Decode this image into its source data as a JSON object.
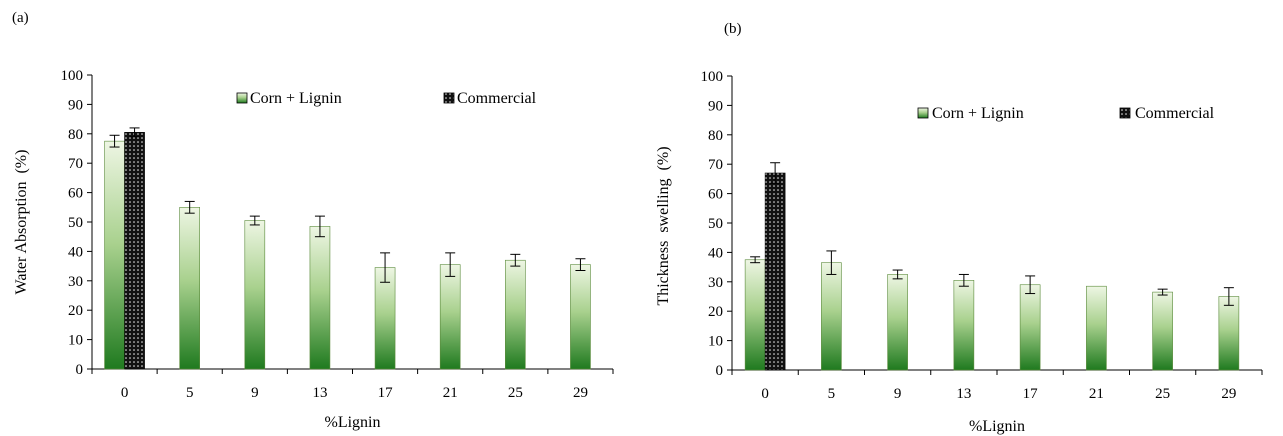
{
  "chart_data": [
    {
      "type": "bar",
      "panel_label": "(a)",
      "categories": [
        "0",
        "5",
        "9",
        "13",
        "17",
        "21",
        "25",
        "29"
      ],
      "xlabel": "%Lignin",
      "ylabel": "Water Absorption  (%)",
      "ylim": [
        0,
        100
      ],
      "yticks": [
        "0",
        "10",
        "20",
        "30",
        "40",
        "50",
        "60",
        "70",
        "80",
        "90",
        "100"
      ],
      "legend_placement": "top-center",
      "grid": false,
      "series": [
        {
          "name": "Corn + Lignin",
          "values": [
            77.5,
            55,
            50.5,
            48.5,
            34.5,
            35.5,
            37,
            35.5
          ],
          "errors": [
            2,
            2,
            1.5,
            3.5,
            5,
            4,
            2,
            2
          ],
          "color": "#2e8b2e"
        },
        {
          "name": "Commercial",
          "values": [
            80.5,
            null,
            null,
            null,
            null,
            null,
            null,
            null
          ],
          "errors": [
            1.5,
            null,
            null,
            null,
            null,
            null,
            null,
            null
          ],
          "color": "#111111"
        }
      ]
    },
    {
      "type": "bar",
      "panel_label": "(b)",
      "categories": [
        "0",
        "5",
        "9",
        "13",
        "17",
        "21",
        "25",
        "29"
      ],
      "xlabel": "%Lignin",
      "ylabel": "Thickness  swelling  (%)",
      "ylim": [
        0,
        100
      ],
      "yticks": [
        "0",
        "10",
        "20",
        "30",
        "40",
        "50",
        "60",
        "70",
        "80",
        "90",
        "100"
      ],
      "legend_placement": "top-center",
      "grid": false,
      "series": [
        {
          "name": "Corn + Lignin",
          "values": [
            37.5,
            36.5,
            32.5,
            30.5,
            29,
            28.5,
            26.5,
            25
          ],
          "errors": [
            1,
            4,
            1.5,
            2,
            3,
            0,
            1,
            3
          ],
          "color": "#2e8b2e"
        },
        {
          "name": "Commercial",
          "values": [
            67,
            null,
            null,
            null,
            null,
            null,
            null,
            null
          ],
          "errors": [
            3.5,
            null,
            null,
            null,
            null,
            null,
            null,
            null
          ],
          "color": "#111111"
        }
      ]
    }
  ]
}
